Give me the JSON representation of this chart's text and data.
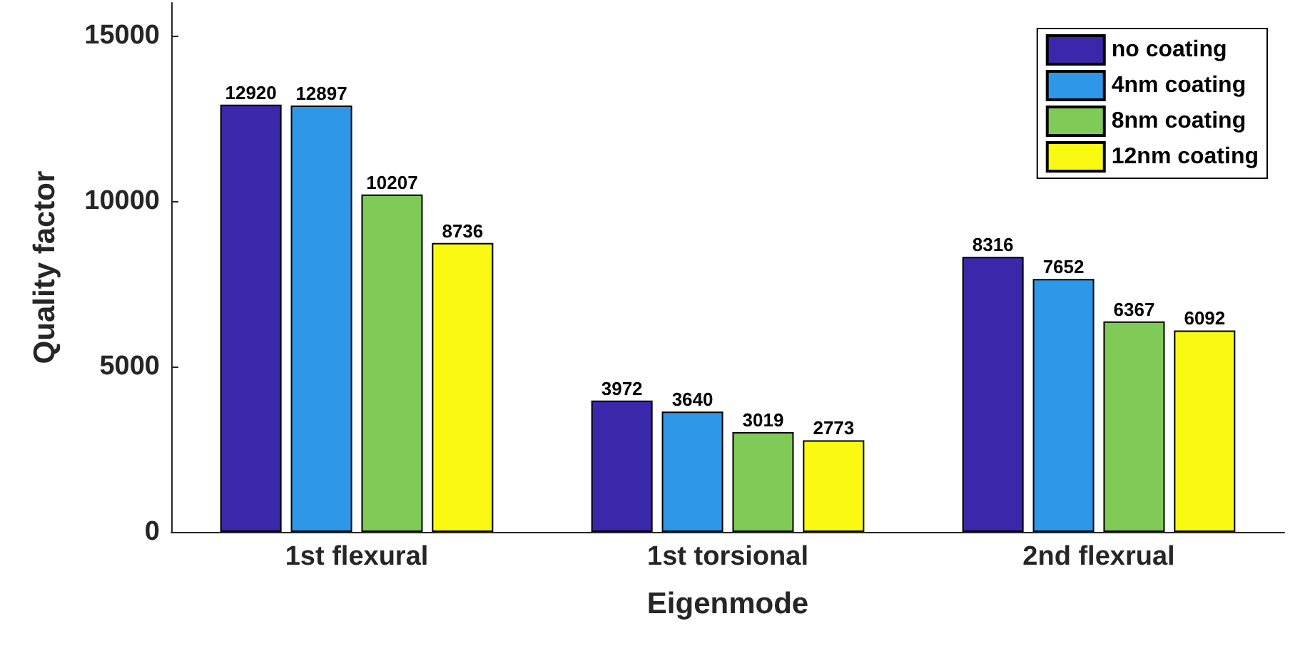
{
  "chart_data": {
    "type": "bar",
    "xlabel": "Eigenmode",
    "ylabel": "Quality factor",
    "categories": [
      "1st flexural",
      "1st torsional",
      "2nd flexrual"
    ],
    "series": [
      {
        "name": "no coating",
        "color": "#3b27a9",
        "values": [
          12920,
          3972,
          8316
        ]
      },
      {
        "name": "4nm coating",
        "color": "#2e97e8",
        "values": [
          12897,
          3640,
          7652
        ]
      },
      {
        "name": "8nm coating",
        "color": "#80cb58",
        "values": [
          10207,
          3019,
          6367
        ]
      },
      {
        "name": "12nm coating",
        "color": "#f9f912",
        "values": [
          8736,
          2773,
          6092
        ]
      }
    ],
    "ylim": [
      0,
      16000
    ],
    "yticks": [
      0,
      5000,
      10000,
      15000
    ],
    "grid": false,
    "legend": "top right",
    "data_labels": true
  }
}
